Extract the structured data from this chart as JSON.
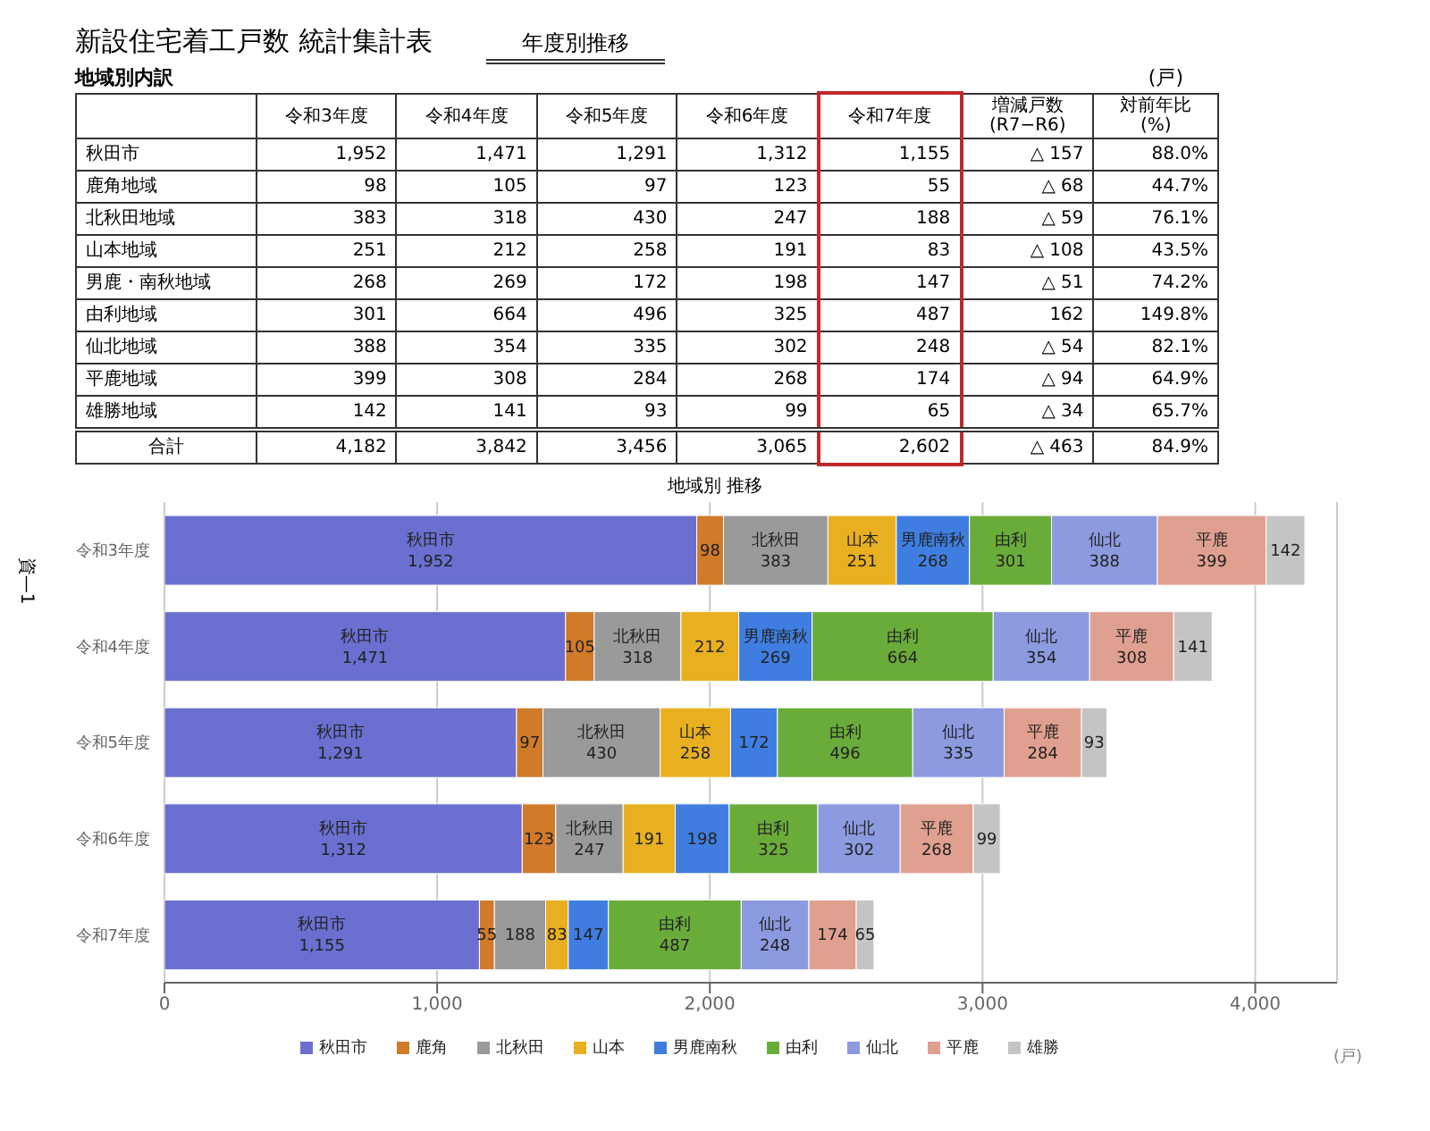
{
  "chart_data": {
    "type": "bar",
    "orientation": "horizontal",
    "stacked": true,
    "title": "新設住宅着工戸数 統計集計表",
    "subtitle": "年度別推移",
    "xlabel": "(戸)",
    "categories": [
      "令和3年度",
      "令和4年度",
      "令和5年度",
      "令和6年度",
      "令和7年度"
    ],
    "series": [
      {
        "name": "秋田市",
        "color": "#6a6fd0",
        "values": [
          1952,
          1471,
          1291,
          1312,
          1155
        ],
        "value_labels": [
          "1,952",
          "1,471",
          "1,291",
          "1,312",
          "1,155"
        ]
      },
      {
        "name": "鹿角",
        "color": "#d07a2a",
        "values": [
          98,
          105,
          97,
          123,
          55
        ],
        "value_labels": [
          "98",
          "105",
          "97",
          "123",
          "55"
        ]
      },
      {
        "name": "北秋田",
        "color": "#9a9a9a",
        "values": [
          383,
          318,
          430,
          247,
          188
        ],
        "value_labels": [
          "383",
          "318",
          "430",
          "247",
          "188"
        ]
      },
      {
        "name": "山本",
        "color": "#e8b020",
        "values": [
          251,
          212,
          258,
          191,
          83
        ],
        "value_labels": [
          "251",
          "212",
          "258",
          "191",
          "83"
        ]
      },
      {
        "name": "男鹿南秋",
        "color": "#3f7ee0",
        "values": [
          268,
          269,
          172,
          198,
          147
        ],
        "value_labels": [
          "268",
          "269",
          "172",
          "198",
          "147"
        ]
      },
      {
        "name": "由利",
        "color": "#6aac3a",
        "values": [
          301,
          664,
          496,
          325,
          487
        ],
        "value_labels": [
          "301",
          "664",
          "496",
          "325",
          "487"
        ]
      },
      {
        "name": "仙北",
        "color": "#8c9ae0",
        "values": [
          388,
          354,
          335,
          302,
          248
        ],
        "value_labels": [
          "388",
          "354",
          "335",
          "302",
          "248"
        ]
      },
      {
        "name": "平鹿",
        "color": "#e0a090",
        "values": [
          399,
          308,
          284,
          268,
          174
        ],
        "value_labels": [
          "399",
          "308",
          "284",
          "268",
          "174"
        ]
      },
      {
        "name": "雄勝",
        "color": "#c4c4c4",
        "values": [
          142,
          141,
          93,
          99,
          65
        ],
        "value_labels": [
          "142",
          "141",
          "93",
          "99",
          "65"
        ]
      }
    ],
    "xlim": [
      0,
      4300
    ],
    "xticks": [
      0,
      {
        "value": 1000,
        "label": "1,000"
      },
      {
        "value": 2000,
        "label": "2,000"
      },
      {
        "value": 3000,
        "label": "3,000"
      },
      {
        "value": 4000,
        "label": "4,000"
      }
    ],
    "grid": "x",
    "legend": "bottom",
    "data_labels": true,
    "annotations": [
      "地域別内訳",
      "(戸)",
      "増減戸数\n(R7−R6)",
      "対前年比\n(%)",
      "合計",
      "資—1",
      "地域別 推移",
      "秋田市",
      "鹿角地域",
      "北秋田地域",
      "山本地域",
      "男鹿・南秋地域",
      "由利地域",
      "仙北地域",
      "平鹿地域",
      "雄勝地域",
      "△ 157",
      "△ 68",
      "△ 59",
      "△ 108",
      "△ 51",
      "162",
      "△ 54",
      "△ 94",
      "△ 34",
      "△ 463",
      "88.0%",
      "44.7%",
      "76.1%",
      "43.5%",
      "74.2%",
      "149.8%",
      "82.1%",
      "64.9%",
      "65.7%",
      "84.9%",
      "4,182",
      "3,842",
      "3,456",
      "3,065",
      "2,602"
    ]
  }
}
